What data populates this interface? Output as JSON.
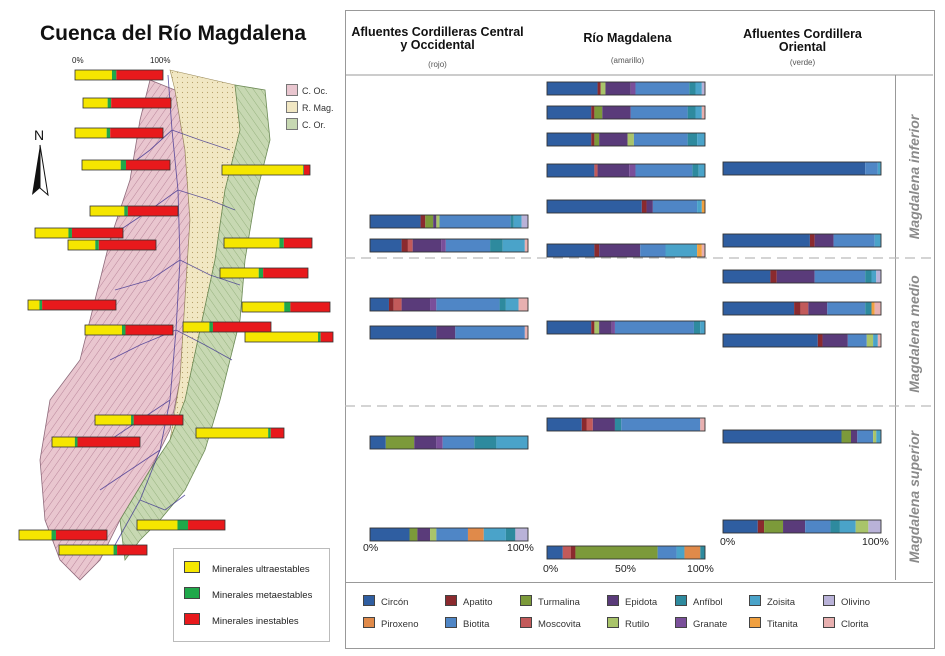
{
  "map": {
    "title": "Cuenca del Río Magdalena",
    "scale_start": "0%",
    "scale_end": "100%",
    "north_label": "N",
    "regions": [
      {
        "label": "C. Oc.",
        "color": "#e9c6cf"
      },
      {
        "label": "R. Mag.",
        "color": "#f1e7c3"
      },
      {
        "label": "C. Or.",
        "color": "#c7d8b2"
      }
    ],
    "stability_legend": [
      {
        "label": "Minerales ultraestables",
        "color": "#f5e600"
      },
      {
        "label": "Minerales metaestables",
        "color": "#1fa84a"
      },
      {
        "label": "Minerales inestables",
        "color": "#e8191c"
      }
    ],
    "bars": [
      {
        "ultra": 42,
        "meta": 5,
        "ines": 53
      },
      {
        "ultra": 28,
        "meta": 4,
        "ines": 68
      },
      {
        "ultra": 36,
        "meta": 4,
        "ines": 60
      },
      {
        "ultra": 44,
        "meta": 6,
        "ines": 50
      },
      {
        "ultra": 92,
        "meta": 1,
        "ines": 7
      },
      {
        "ultra": 39,
        "meta": 4,
        "ines": 57
      },
      {
        "ultra": 38,
        "meta": 4,
        "ines": 58
      },
      {
        "ultra": 31,
        "meta": 4,
        "ines": 65
      },
      {
        "ultra": 63,
        "meta": 5,
        "ines": 32
      },
      {
        "ultra": 44,
        "meta": 5,
        "ines": 51
      },
      {
        "ultra": 13,
        "meta": 3,
        "ines": 84
      },
      {
        "ultra": 48,
        "meta": 7,
        "ines": 45
      },
      {
        "ultra": 42,
        "meta": 4,
        "ines": 54
      },
      {
        "ultra": 30,
        "meta": 4,
        "ines": 66
      },
      {
        "ultra": 83,
        "meta": 3,
        "ines": 14
      },
      {
        "ultra": 41,
        "meta": 3,
        "ines": 56
      },
      {
        "ultra": 82,
        "meta": 3,
        "ines": 15
      },
      {
        "ultra": 26,
        "meta": 3,
        "ines": 71
      },
      {
        "ultra": 46,
        "meta": 12,
        "ines": 42
      },
      {
        "ultra": 37,
        "meta": 5,
        "ines": 58
      },
      {
        "ultra": 62,
        "meta": 4,
        "ines": 34
      }
    ]
  },
  "chart_data": {
    "type": "bar",
    "columns": [
      {
        "title": "Afluentes Cordilleras Central y Occidental",
        "subtitle": "(rojo)"
      },
      {
        "title": "Río Magdalena",
        "subtitle": "(amarillo)"
      },
      {
        "title": "Afluentes Cordillera Oriental",
        "subtitle": "(verde)"
      }
    ],
    "regions": [
      "Magdalena inferior",
      "Magdalena medio",
      "Magdalena superior"
    ],
    "axis": {
      "ticks": [
        "0%",
        "50%",
        "100%"
      ],
      "range": [
        0,
        100
      ]
    },
    "minerals": [
      {
        "name": "Circón",
        "color": "#2f5ea1"
      },
      {
        "name": "Apatito",
        "color": "#8b2a2e"
      },
      {
        "name": "Turmalina",
        "color": "#7c9a3a"
      },
      {
        "name": "Epidota",
        "color": "#5a3b7a"
      },
      {
        "name": "Anfíbol",
        "color": "#2e8a9e"
      },
      {
        "name": "Zoisita",
        "color": "#4aa3c9"
      },
      {
        "name": "Olivino",
        "color": "#b9b2d8"
      },
      {
        "name": "Piroxeno",
        "color": "#e08a4a"
      },
      {
        "name": "Biotita",
        "color": "#4f86c6"
      },
      {
        "name": "Moscovita",
        "color": "#c25a5a"
      },
      {
        "name": "Rutilo",
        "color": "#a9c46a"
      },
      {
        "name": "Granate",
        "color": "#7a4f9a"
      },
      {
        "name": "Titanita",
        "color": "#f0a040"
      },
      {
        "name": "Clorita",
        "color": "#e8b0b0"
      }
    ],
    "samples": [
      {
        "col": 0,
        "row": 3,
        "region": "Magdalena inferior",
        "values": {
          "Circón": 32,
          "Apatito": 3,
          "Turmalina": 5,
          "Epidota": 2,
          "Rutilo": 2,
          "Biotita": 45,
          "Anfíbol": 2,
          "Zoisita": 5,
          "Olivino": 4
        }
      },
      {
        "col": 0,
        "row": 4,
        "region": "Magdalena inferior",
        "values": {
          "Circón": 20,
          "Apatito": 4,
          "Moscovita": 3,
          "Epidota": 18,
          "Granate": 3,
          "Biotita": 28,
          "Anfíbol": 8,
          "Zoisita": 14,
          "Clorita": 2
        }
      },
      {
        "col": 0,
        "row": 5,
        "region": "Magdalena medio",
        "values": {
          "Circón": 12,
          "Apatito": 3,
          "Moscovita": 5,
          "Epidota": 18,
          "Granate": 4,
          "Biotita": 40,
          "Anfíbol": 4,
          "Zoisita": 8,
          "Clorita": 6
        }
      },
      {
        "col": 0,
        "row": 6,
        "region": "Magdalena medio",
        "values": {
          "Circón": 42,
          "Epidota": 12,
          "Biotita": 44,
          "Clorita": 2
        }
      },
      {
        "col": 0,
        "row": 7,
        "region": "Magdalena superior",
        "values": {
          "Circón": 10,
          "Turmalina": 18,
          "Epidota": 14,
          "Granate": 4,
          "Biotita": 20,
          "Anfíbol": 14,
          "Zoisita": 20
        }
      },
      {
        "col": 0,
        "row": 8,
        "region": "Magdalena superior",
        "values": {
          "Circón": 25,
          "Turmalina": 5,
          "Epidota": 8,
          "Rutilo": 4,
          "Biotita": 20,
          "Piroxeno": 10,
          "Zoisita": 14,
          "Anfíbol": 6,
          "Olivino": 8
        }
      },
      {
        "col": 1,
        "row": 0,
        "region": "Magdalena inferior",
        "values": {
          "Circón": 32,
          "Apatito": 2,
          "Rutilo": 3,
          "Epidota": 16,
          "Granate": 3,
          "Biotita": 34,
          "Anfíbol": 4,
          "Zoisita": 4,
          "Olivino": 2
        }
      },
      {
        "col": 1,
        "row": 1,
        "region": "Magdalena inferior",
        "values": {
          "Circón": 28,
          "Apatito": 2,
          "Turmalina": 5,
          "Epidota": 18,
          "Biotita": 36,
          "Anfíbol": 5,
          "Zoisita": 4,
          "Clorita": 2
        }
      },
      {
        "col": 1,
        "row": 2,
        "region": "Magdalena inferior",
        "values": {
          "Circón": 28,
          "Apatito": 2,
          "Turmalina": 3,
          "Epidota": 18,
          "Rutilo": 4,
          "Biotita": 34,
          "Anfíbol": 6,
          "Zoisita": 5
        }
      },
      {
        "col": 1,
        "row": 3,
        "region": "Magdalena inferior",
        "values": {
          "Circón": 30,
          "Moscovita": 2,
          "Epidota": 20,
          "Granate": 4,
          "Biotita": 36,
          "Anfíbol": 4,
          "Zoisita": 4
        }
      },
      {
        "col": 1,
        "row": 4,
        "region": "Magdalena inferior",
        "values": {
          "Circón": 60,
          "Apatito": 3,
          "Epidota": 4,
          "Biotita": 28,
          "Zoisita": 3,
          "Titanita": 2
        }
      },
      {
        "col": 1,
        "row": 5,
        "region": "Magdalena inferior",
        "values": {
          "Circón": 30,
          "Apatito": 3,
          "Epidota": 26,
          "Biotita": 16,
          "Zoisita": 20,
          "Titanita": 3,
          "Clorita": 2
        }
      },
      {
        "col": 1,
        "row": 6,
        "region": "Magdalena medio",
        "values": {
          "Circón": 28,
          "Apatito": 2,
          "Rutilo": 3,
          "Epidota": 8,
          "Granate": 2,
          "Biotita": 50,
          "Anfíbol": 4,
          "Zoisita": 3
        }
      },
      {
        "col": 1,
        "row": 7,
        "region": "Magdalena superior",
        "values": {
          "Circón": 22,
          "Apatito": 3,
          "Moscovita": 4,
          "Epidota": 14,
          "Anfíbol": 4,
          "Biotita": 50,
          "Clorita": 3
        }
      },
      {
        "col": 1,
        "row": 8,
        "region": "Magdalena superior",
        "values": {
          "Circón": 10,
          "Moscovita": 5,
          "Apatito": 3,
          "Turmalina": 52,
          "Biotita": 12,
          "Zoisita": 5,
          "Piroxeno": 10,
          "Anfíbol": 3
        }
      },
      {
        "col": 2,
        "row": 1,
        "region": "Magdalena inferior",
        "values": {
          "Circón": 90,
          "Biotita": 8,
          "Zoisita": 2
        }
      },
      {
        "col": 2,
        "row": 2,
        "region": "Magdalena inferior",
        "values": {
          "Circón": 55,
          "Apatito": 3,
          "Epidota": 12,
          "Biotita": 26,
          "Zoisita": 4
        }
      },
      {
        "col": 2,
        "row": 3,
        "region": "Magdalena medio",
        "values": {
          "Circón": 30,
          "Apatito": 4,
          "Epidota": 24,
          "Biotita": 32,
          "Anfíbol": 4,
          "Zoisita": 3,
          "Olivino": 3
        }
      },
      {
        "col": 2,
        "row": 4,
        "region": "Magdalena medio",
        "values": {
          "Circón": 45,
          "Apatito": 4,
          "Moscovita": 5,
          "Epidota": 12,
          "Biotita": 24,
          "Anfíbol": 4,
          "Titanita": 2,
          "Clorita": 4
        }
      },
      {
        "col": 2,
        "row": 5,
        "region": "Magdalena medio",
        "values": {
          "Circón": 60,
          "Apatito": 3,
          "Epidota": 16,
          "Biotita": 12,
          "Rutilo": 4,
          "Zoisita": 3,
          "Clorita": 2
        }
      },
      {
        "col": 2,
        "row": 6,
        "region": "Magdalena superior",
        "values": {
          "Circón": 75,
          "Turmalina": 6,
          "Epidota": 4,
          "Biotita": 10,
          "Rutilo": 2,
          "Zoisita": 3
        }
      },
      {
        "col": 2,
        "row": 7,
        "region": "Magdalena superior",
        "values": {
          "Circón": 22,
          "Apatito": 4,
          "Turmalina": 12,
          "Epidota": 14,
          "Biotita": 16,
          "Anfíbol": 6,
          "Zoisita": 10,
          "Rutilo": 8,
          "Olivino": 8
        }
      }
    ]
  }
}
